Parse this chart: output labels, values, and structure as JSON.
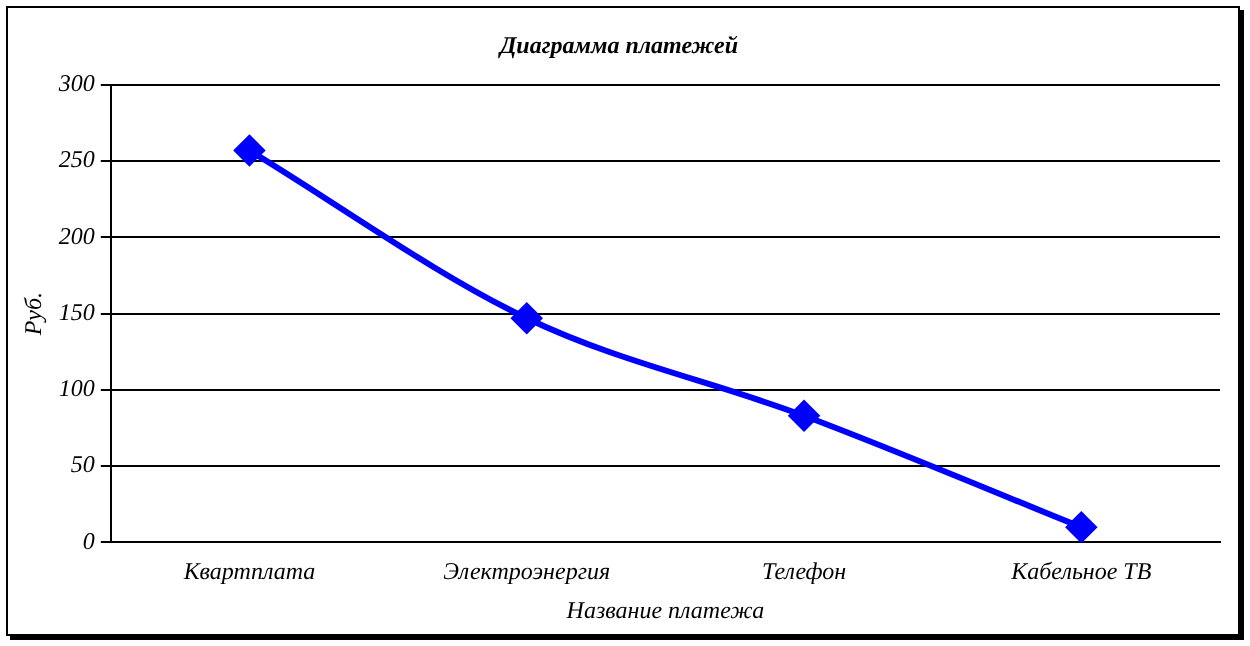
{
  "chart_data": {
    "type": "line",
    "title": "Диаграмма платежей",
    "xlabel": "Название платежа",
    "ylabel": "Руб.",
    "categories": [
      "Квартплата",
      "Электроэнергия",
      "Телефон",
      "Кабельное ТВ"
    ],
    "series": [
      {
        "color": "#0000ff",
        "values": [
          257,
          147,
          83,
          10
        ]
      }
    ],
    "ylim": [
      0,
      300
    ],
    "yticks": [
      0,
      50,
      100,
      150,
      200,
      250,
      300
    ],
    "grid": "y",
    "legend": false,
    "marker": "diamond",
    "line_style": "solid"
  }
}
